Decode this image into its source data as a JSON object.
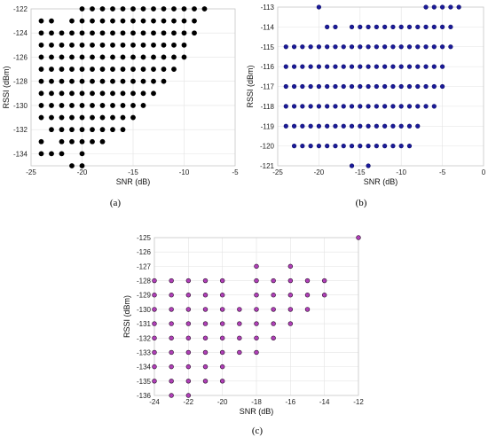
{
  "figure": {
    "panels": [
      {
        "id": "a",
        "caption": "(a)",
        "type": "scatter",
        "xlabel": "SNR (dB)",
        "ylabel": "RSSI (dBm)",
        "xlim": [
          -25,
          -5
        ],
        "ylim": [
          -135,
          -122
        ],
        "xticks": [
          -25,
          -20,
          -15,
          -10,
          -5
        ],
        "yticks": [
          -122,
          -124,
          -126,
          -128,
          -130,
          -132,
          -134
        ],
        "marker_color": "#000000",
        "marker_stroke": "#000000",
        "grid": true,
        "rows": [
          {
            "y": -122,
            "x": [
              -20,
              -19,
              -18,
              -17,
              -16,
              -15,
              -14,
              -13,
              -12,
              -11,
              -10,
              -9,
              -8
            ]
          },
          {
            "y": -123,
            "x": [
              -24,
              -23,
              -21,
              -20,
              -19,
              -18,
              -17,
              -16,
              -15,
              -14,
              -13,
              -12,
              -11,
              -10,
              -9
            ]
          },
          {
            "y": -124,
            "x": [
              -24,
              -23,
              -22,
              -21,
              -20,
              -19,
              -18,
              -17,
              -16,
              -15,
              -14,
              -13,
              -12,
              -11,
              -10,
              -9
            ]
          },
          {
            "y": -125,
            "x": [
              -24,
              -23,
              -22,
              -21,
              -20,
              -19,
              -18,
              -17,
              -16,
              -15,
              -14,
              -13,
              -12,
              -11,
              -10
            ]
          },
          {
            "y": -126,
            "x": [
              -24,
              -23,
              -22,
              -21,
              -20,
              -19,
              -18,
              -17,
              -16,
              -15,
              -14,
              -13,
              -12,
              -11,
              -10
            ]
          },
          {
            "y": -127,
            "x": [
              -24,
              -23,
              -22,
              -21,
              -20,
              -19,
              -18,
              -17,
              -16,
              -15,
              -14,
              -13,
              -12,
              -11
            ]
          },
          {
            "y": -128,
            "x": [
              -24,
              -23,
              -22,
              -21,
              -20,
              -19,
              -18,
              -17,
              -16,
              -15,
              -14,
              -13,
              -12
            ]
          },
          {
            "y": -129,
            "x": [
              -24,
              -23,
              -22,
              -21,
              -20,
              -19,
              -18,
              -17,
              -16,
              -15,
              -14,
              -13
            ]
          },
          {
            "y": -130,
            "x": [
              -24,
              -23,
              -22,
              -21,
              -20,
              -19,
              -18,
              -17,
              -16,
              -15,
              -14
            ]
          },
          {
            "y": -131,
            "x": [
              -24,
              -23,
              -22,
              -21,
              -20,
              -19,
              -18,
              -17,
              -16,
              -15
            ]
          },
          {
            "y": -132,
            "x": [
              -23,
              -22,
              -21,
              -20,
              -19,
              -18,
              -17,
              -16
            ]
          },
          {
            "y": -133,
            "x": [
              -24,
              -22,
              -21,
              -20,
              -19,
              -18
            ]
          },
          {
            "y": -134,
            "x": [
              -24,
              -23,
              -22,
              -20
            ]
          },
          {
            "y": -135,
            "x": [
              -21,
              -20
            ]
          }
        ]
      },
      {
        "id": "b",
        "caption": "(b)",
        "type": "scatter",
        "xlabel": "SNR (dB)",
        "ylabel": "RSSI (dBm)",
        "xlim": [
          -25,
          0
        ],
        "ylim": [
          -121,
          -113
        ],
        "xticks": [
          -25,
          -20,
          -15,
          -10,
          -5,
          0
        ],
        "yticks": [
          -113,
          -114,
          -115,
          -116,
          -117,
          -118,
          -119,
          -120,
          -121
        ],
        "marker_color": "#1a1a9a",
        "marker_stroke": "#0c0c66",
        "grid": true,
        "rows": [
          {
            "y": -113,
            "x": [
              -20,
              -7,
              -6,
              -5,
              -4,
              -3
            ]
          },
          {
            "y": -114,
            "x": [
              -19,
              -18,
              -16,
              -15,
              -14,
              -13,
              -12,
              -11,
              -10,
              -9,
              -8,
              -7,
              -6,
              -5,
              -4
            ]
          },
          {
            "y": -115,
            "x": [
              -24,
              -23,
              -22,
              -21,
              -20,
              -19,
              -18,
              -17,
              -16,
              -15,
              -14,
              -13,
              -12,
              -11,
              -10,
              -9,
              -8,
              -7,
              -6,
              -5,
              -4
            ]
          },
          {
            "y": -116,
            "x": [
              -24,
              -23,
              -22,
              -21,
              -20,
              -19,
              -18,
              -17,
              -16,
              -15,
              -14,
              -13,
              -12,
              -11,
              -10,
              -9,
              -8,
              -7,
              -6,
              -5
            ]
          },
          {
            "y": -117,
            "x": [
              -24,
              -23,
              -22,
              -21,
              -20,
              -19,
              -18,
              -17,
              -16,
              -15,
              -14,
              -13,
              -12,
              -11,
              -10,
              -9,
              -8,
              -7,
              -6,
              -5
            ]
          },
          {
            "y": -118,
            "x": [
              -24,
              -23,
              -22,
              -21,
              -20,
              -19,
              -18,
              -17,
              -16,
              -15,
              -14,
              -13,
              -12,
              -11,
              -10,
              -9,
              -8,
              -7,
              -6
            ]
          },
          {
            "y": -119,
            "x": [
              -24,
              -23,
              -22,
              -21,
              -20,
              -19,
              -18,
              -17,
              -16,
              -15,
              -14,
              -13,
              -12,
              -11,
              -10,
              -9,
              -8
            ]
          },
          {
            "y": -120,
            "x": [
              -23,
              -22,
              -21,
              -20,
              -19,
              -18,
              -17,
              -16,
              -15,
              -14,
              -13,
              -12,
              -11,
              -10,
              -9
            ]
          },
          {
            "y": -121,
            "x": [
              -16,
              -14
            ]
          }
        ]
      },
      {
        "id": "c",
        "caption": "(c)",
        "type": "scatter",
        "xlabel": "SNR (dB)",
        "ylabel": "RSSI (dBm)",
        "xlim": [
          -24,
          -12
        ],
        "ylim": [
          -136,
          -125
        ],
        "xticks": [
          -24,
          -22,
          -20,
          -18,
          -16,
          -14,
          -12
        ],
        "yticks": [
          -125,
          -126,
          -127,
          -128,
          -129,
          -130,
          -131,
          -132,
          -133,
          -134,
          -135,
          -136
        ],
        "marker_color": "#b040b8",
        "marker_stroke": "#2a0a2a",
        "grid": true,
        "rows": [
          {
            "y": -125,
            "x": [
              -12
            ]
          },
          {
            "y": -127,
            "x": [
              -18,
              -16
            ]
          },
          {
            "y": -128,
            "x": [
              -24,
              -23,
              -22,
              -21,
              -20,
              -18,
              -17,
              -16,
              -15,
              -14
            ]
          },
          {
            "y": -129,
            "x": [
              -24,
              -23,
              -22,
              -21,
              -20,
              -18,
              -17,
              -16,
              -15,
              -14
            ]
          },
          {
            "y": -130,
            "x": [
              -24,
              -23,
              -22,
              -21,
              -20,
              -19,
              -18,
              -17,
              -16,
              -15
            ]
          },
          {
            "y": -131,
            "x": [
              -24,
              -23,
              -22,
              -21,
              -20,
              -19,
              -18,
              -17,
              -16
            ]
          },
          {
            "y": -132,
            "x": [
              -24,
              -23,
              -22,
              -21,
              -20,
              -19,
              -18,
              -17
            ]
          },
          {
            "y": -133,
            "x": [
              -24,
              -23,
              -22,
              -21,
              -20,
              -19,
              -18
            ]
          },
          {
            "y": -134,
            "x": [
              -24,
              -23,
              -22,
              -21,
              -20
            ]
          },
          {
            "y": -135,
            "x": [
              -24,
              -23,
              -22,
              -21,
              -20
            ]
          },
          {
            "y": -136,
            "x": [
              -23,
              -22
            ]
          }
        ]
      }
    ]
  },
  "chart_data": [
    {
      "type": "scatter",
      "panel": "a",
      "xlabel": "SNR (dB)",
      "ylabel": "RSSI (dBm)",
      "xlim": [
        -25,
        -5
      ],
      "ylim": [
        -135,
        -122
      ]
    },
    {
      "type": "scatter",
      "panel": "b",
      "xlabel": "SNR (dB)",
      "ylabel": "RSSI (dBm)",
      "xlim": [
        -25,
        0
      ],
      "ylim": [
        -121,
        -113
      ]
    },
    {
      "type": "scatter",
      "panel": "c",
      "xlabel": "SNR (dB)",
      "ylabel": "RSSI (dBm)",
      "xlim": [
        -24,
        -12
      ],
      "ylim": [
        -136,
        -125
      ]
    }
  ]
}
